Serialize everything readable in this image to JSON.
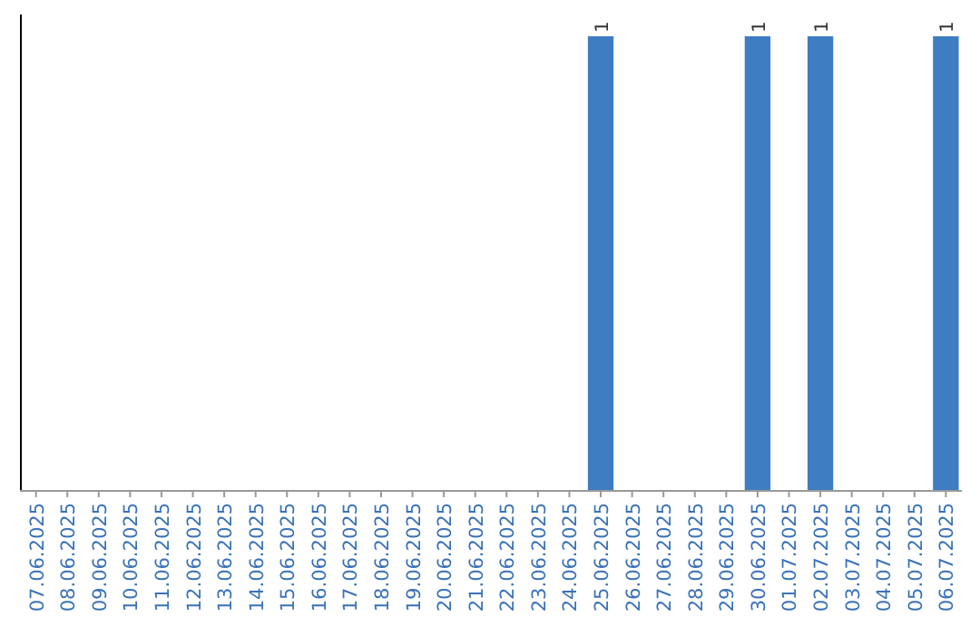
{
  "chart_data": {
    "type": "bar",
    "categories": [
      "07.06.2025",
      "08.06.2025",
      "09.06.2025",
      "10.06.2025",
      "11.06.2025",
      "12.06.2025",
      "13.06.2025",
      "14.06.2025",
      "15.06.2025",
      "16.06.2025",
      "17.06.2025",
      "18.06.2025",
      "19.06.2025",
      "20.06.2025",
      "21.06.2025",
      "22.06.2025",
      "23.06.2025",
      "24.06.2025",
      "25.06.2025",
      "26.06.2025",
      "27.06.2025",
      "28.06.2025",
      "29.06.2025",
      "30.06.2025",
      "01.07.2025",
      "02.07.2025",
      "03.07.2025",
      "04.07.2025",
      "05.07.2025",
      "06.07.2025"
    ],
    "values": [
      null,
      null,
      null,
      null,
      null,
      null,
      null,
      null,
      null,
      null,
      null,
      null,
      null,
      null,
      null,
      null,
      null,
      null,
      1,
      null,
      null,
      null,
      null,
      1,
      null,
      1,
      null,
      null,
      null,
      1
    ],
    "value_labels": [
      null,
      null,
      null,
      null,
      null,
      null,
      null,
      null,
      null,
      null,
      null,
      null,
      null,
      null,
      null,
      null,
      null,
      null,
      "1",
      null,
      null,
      null,
      null,
      "1",
      null,
      "1",
      null,
      null,
      null,
      "1"
    ],
    "color": "#3e7dc1",
    "tick_labels": "x"
  }
}
